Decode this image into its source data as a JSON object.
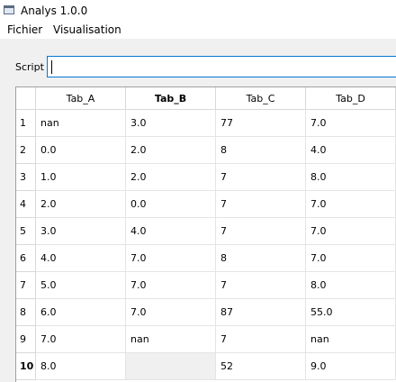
{
  "window": {
    "title": "Analys 1.0.0",
    "icon": "window-app-icon"
  },
  "menubar": {
    "items": [
      "Fichier",
      "Visualisation"
    ]
  },
  "script": {
    "label": "Script",
    "value": ""
  },
  "table": {
    "columns": [
      "Tab_A",
      "Tab_B",
      "Tab_C",
      "Tab_D"
    ],
    "bold_column": "Tab_B",
    "selected_row": "10",
    "selected_cell": {
      "row": "10",
      "column": "Tab_B"
    },
    "rows": [
      {
        "label": "1",
        "cells": [
          "nan",
          "3.0",
          "77",
          "7.0"
        ]
      },
      {
        "label": "2",
        "cells": [
          "0.0",
          "2.0",
          "8",
          "4.0"
        ]
      },
      {
        "label": "3",
        "cells": [
          "1.0",
          "2.0",
          "7",
          "8.0"
        ]
      },
      {
        "label": "4",
        "cells": [
          "2.0",
          "0.0",
          "7",
          "7.0"
        ]
      },
      {
        "label": "5",
        "cells": [
          "3.0",
          "4.0",
          "7",
          "7.0"
        ]
      },
      {
        "label": "6",
        "cells": [
          "4.0",
          "7.0",
          "8",
          "7.0"
        ]
      },
      {
        "label": "7",
        "cells": [
          "5.0",
          "7.0",
          "7",
          "8.0"
        ]
      },
      {
        "label": "8",
        "cells": [
          "6.0",
          "7.0",
          "87",
          "55.0"
        ]
      },
      {
        "label": "9",
        "cells": [
          "7.0",
          "nan",
          "7",
          "nan"
        ]
      },
      {
        "label": "10",
        "cells": [
          "8.0",
          "",
          "52",
          "9.0"
        ]
      }
    ]
  }
}
